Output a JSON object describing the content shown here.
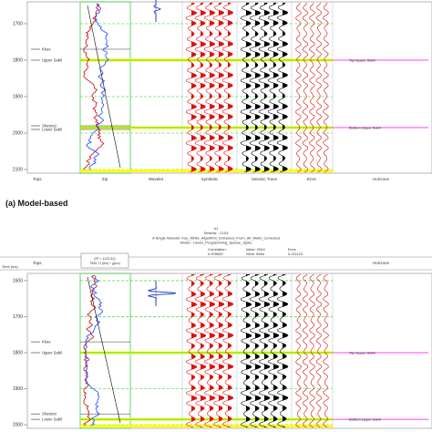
{
  "panels": [
    {
      "caption": "(a) Model-based",
      "header_lines": [],
      "corr_text": "",
      "inline_text": "",
      "error_text": "",
      "zip_box": [],
      "time_ticks": [
        1700,
        1800,
        1900,
        2000,
        2100
      ],
      "time_range": [
        1640,
        2110
      ],
      "time_label": "",
      "columns": [
        "Tops",
        "Zip",
        "Wavelet",
        "Synthetic",
        "Seismic Trace",
        "Error",
        "Horizons"
      ],
      "tops": [
        {
          "name": "Khav",
          "t": 1770
        },
        {
          "name": "Upper Sabil",
          "t": 1800
        },
        {
          "name": "Sheteret",
          "t": 1980
        },
        {
          "name": "Lower Sabil",
          "t": 1990
        }
      ],
      "horizons": [
        {
          "name": "Top Upper Sabil",
          "t": 1800
        },
        {
          "name": "Bottom Upper Sabil",
          "t": 1985
        }
      ]
    },
    {
      "caption": "",
      "header_lines": [
        "#1",
        "Seismic : C103",
        "A Single Wavelet: Kuy_White_Algorithm_Extracted_From_All_Wells_Corrected",
        "Model : Linear_Programming_Sparse_Spike"
      ],
      "corr_text": "Correlation: 0.978552",
      "inline_text": "Inline: 2044  Xline: 5684",
      "error_text": "Error 0.211122",
      "zip_box": [
        "(R² = 1222.42)",
        "7830.71 (ft/s) * (g/cc)"
      ],
      "time_ticks": [
        1600,
        1700,
        1800,
        1900,
        2000
      ],
      "time_range": [
        1580,
        2010
      ],
      "time_label": "Time (ms)",
      "columns": [
        "Tops",
        "",
        "",
        "",
        "",
        "",
        "Horizons"
      ],
      "tops": [
        {
          "name": "Khav",
          "t": 1770
        },
        {
          "name": "Upper Sabil",
          "t": 1800
        },
        {
          "name": "Sheteret",
          "t": 1970
        },
        {
          "name": "Lower Sabil",
          "t": 1985
        }
      ],
      "horizons": [
        {
          "name": "Top Upper Sabil",
          "t": 1800
        },
        {
          "name": "Bottom Upper Sabil",
          "t": 1985
        }
      ]
    }
  ],
  "colors": {
    "synthetic": "#e01010",
    "seismic": "#000000",
    "error": "#d01010",
    "horizon": "#ff00ff",
    "grid_green": "#22cc22",
    "band_yellow": "#ffff00",
    "zip_red": "#cc0000",
    "zip_blue": "#2244ff",
    "border": "#888888"
  }
}
